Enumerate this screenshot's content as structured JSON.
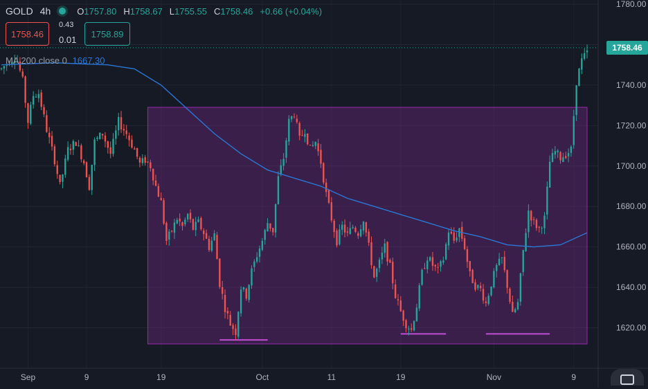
{
  "legend": {
    "symbol": "GOLD",
    "timeframe": "4h",
    "o_key": "O",
    "open": "1757.80",
    "h_key": "H",
    "high": "1758.67",
    "l_key": "L",
    "low": "1755.55",
    "c_key": "C",
    "close": "1758.46",
    "change": "+0.66 (+0.04%)"
  },
  "trade": {
    "sell_price": "1758.46",
    "spread_top": "0.43",
    "spread_bottom": "0.01",
    "buy_price": "1758.89"
  },
  "indicator": {
    "label": "MA 200 close 0",
    "value": "1667.30"
  },
  "colors": {
    "background": "#161a25",
    "up": "#26a69a",
    "down": "#ef5350",
    "ma": "#2a78d6",
    "range_box": "#7b2c8f",
    "price_tag": "#26a69a"
  },
  "chart_data": {
    "type": "candlestick",
    "symbol": "GOLD",
    "timeframe": "4h",
    "ylim": [
      1600,
      1780
    ],
    "y_ticks": [
      "1620.00",
      "1640.00",
      "1660.00",
      "1680.00",
      "1700.00",
      "1720.00",
      "1740.00",
      "1760.00",
      "1780.00"
    ],
    "x_ticks": [
      "Sep",
      "9",
      "19",
      "Oct",
      "11",
      "19",
      "Nov",
      "9"
    ],
    "last_price": "1758.46",
    "price_path": [
      [
        0,
        1748
      ],
      [
        3,
        1752
      ],
      [
        5,
        1754
      ],
      [
        6,
        1752
      ],
      [
        8,
        1742
      ],
      [
        10,
        1722
      ],
      [
        12,
        1735
      ],
      [
        14,
        1736
      ],
      [
        17,
        1718
      ],
      [
        20,
        1703
      ],
      [
        22,
        1690
      ],
      [
        25,
        1708
      ],
      [
        28,
        1712
      ],
      [
        31,
        1702
      ],
      [
        33,
        1690
      ],
      [
        35,
        1712
      ],
      [
        38,
        1716
      ],
      [
        41,
        1706
      ],
      [
        44,
        1722
      ],
      [
        47,
        1716
      ],
      [
        50,
        1708
      ],
      [
        52,
        1701
      ],
      [
        54,
        1703
      ],
      [
        56,
        1700
      ],
      [
        58,
        1690
      ],
      [
        60,
        1682
      ],
      [
        62,
        1663
      ],
      [
        64,
        1668
      ],
      [
        66,
        1674
      ],
      [
        68,
        1670
      ],
      [
        70,
        1676
      ],
      [
        72,
        1669
      ],
      [
        74,
        1672
      ],
      [
        76,
        1667
      ],
      [
        78,
        1660
      ],
      [
        80,
        1666
      ],
      [
        82,
        1642
      ],
      [
        84,
        1630
      ],
      [
        86,
        1622
      ],
      [
        88,
        1618
      ],
      [
        90,
        1640
      ],
      [
        92,
        1636
      ],
      [
        94,
        1648
      ],
      [
        96,
        1656
      ],
      [
        98,
        1663
      ],
      [
        100,
        1672
      ],
      [
        102,
        1668
      ],
      [
        104,
        1694
      ],
      [
        106,
        1704
      ],
      [
        108,
        1722
      ],
      [
        110,
        1726
      ],
      [
        112,
        1713
      ],
      [
        114,
        1718
      ],
      [
        116,
        1708
      ],
      [
        118,
        1712
      ],
      [
        120,
        1702
      ],
      [
        122,
        1686
      ],
      [
        124,
        1674
      ],
      [
        126,
        1663
      ],
      [
        128,
        1670
      ],
      [
        130,
        1666
      ],
      [
        132,
        1670
      ],
      [
        134,
        1667
      ],
      [
        136,
        1674
      ],
      [
        138,
        1660
      ],
      [
        140,
        1645
      ],
      [
        142,
        1652
      ],
      [
        144,
        1660
      ],
      [
        146,
        1650
      ],
      [
        148,
        1636
      ],
      [
        150,
        1628
      ],
      [
        152,
        1622
      ],
      [
        154,
        1619
      ],
      [
        156,
        1631
      ],
      [
        158,
        1647
      ],
      [
        160,
        1655
      ],
      [
        162,
        1651
      ],
      [
        164,
        1648
      ],
      [
        166,
        1654
      ],
      [
        168,
        1668
      ],
      [
        170,
        1663
      ],
      [
        172,
        1669
      ],
      [
        174,
        1660
      ],
      [
        176,
        1646
      ],
      [
        178,
        1641
      ],
      [
        180,
        1639
      ],
      [
        182,
        1632
      ],
      [
        184,
        1642
      ],
      [
        186,
        1650
      ],
      [
        188,
        1654
      ],
      [
        190,
        1641
      ],
      [
        192,
        1626
      ],
      [
        194,
        1632
      ],
      [
        196,
        1658
      ],
      [
        198,
        1678
      ],
      [
        200,
        1672
      ],
      [
        202,
        1669
      ],
      [
        204,
        1674
      ],
      [
        206,
        1702
      ],
      [
        208,
        1707
      ],
      [
        210,
        1704
      ],
      [
        212,
        1706
      ],
      [
        214,
        1708
      ],
      [
        216,
        1742
      ],
      [
        218,
        1752
      ],
      [
        220,
        1756
      ]
    ],
    "ma_200": [
      [
        0,
        1750
      ],
      [
        20,
        1751
      ],
      [
        40,
        1750
      ],
      [
        50,
        1748
      ],
      [
        60,
        1740
      ],
      [
        70,
        1728
      ],
      [
        80,
        1716
      ],
      [
        90,
        1706
      ],
      [
        100,
        1698
      ],
      [
        110,
        1694
      ],
      [
        120,
        1690
      ],
      [
        130,
        1684
      ],
      [
        140,
        1680
      ],
      [
        150,
        1676
      ],
      [
        160,
        1672
      ],
      [
        170,
        1668
      ],
      [
        180,
        1665
      ],
      [
        190,
        1661
      ],
      [
        200,
        1660
      ],
      [
        210,
        1661
      ],
      [
        220,
        1667
      ]
    ],
    "range_box": {
      "x": [
        55,
        220
      ],
      "y": [
        1612,
        1729
      ]
    },
    "support_marks": [
      {
        "x": [
          82,
          100
        ],
        "y": 1614
      },
      {
        "x": [
          150,
          167
        ],
        "y": 1617
      },
      {
        "x": [
          182,
          206
        ],
        "y": 1617
      }
    ]
  }
}
